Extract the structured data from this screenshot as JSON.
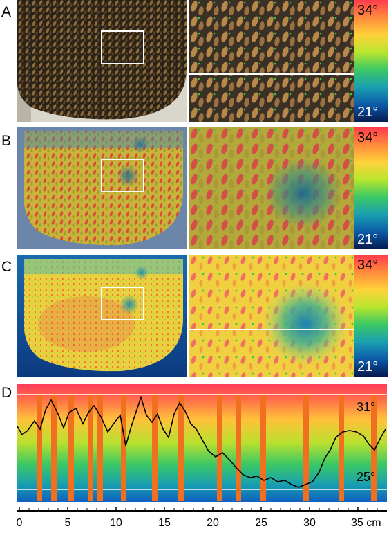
{
  "panels": [
    {
      "letter": "A",
      "scale_top": "34°",
      "scale_bottom": "21°"
    },
    {
      "letter": "B",
      "scale_top": "34°",
      "scale_bottom": "21°"
    },
    {
      "letter": "C",
      "scale_top": "34°",
      "scale_bottom": "21°"
    }
  ],
  "trace_panel": {
    "letter": "D",
    "upper_label": "31°",
    "lower_label": "25°",
    "x_ticks": [
      "0",
      "5",
      "10",
      "15",
      "20",
      "25",
      "30",
      "35 cm"
    ]
  },
  "colors": {
    "scale_gradient": [
      "#ff3b4e",
      "#ff8a3c",
      "#ffd23a",
      "#b8e62e",
      "#3cc864",
      "#1aa0b0",
      "#0c5aa8",
      "#061a50"
    ],
    "bar_color": "#f07020"
  }
}
